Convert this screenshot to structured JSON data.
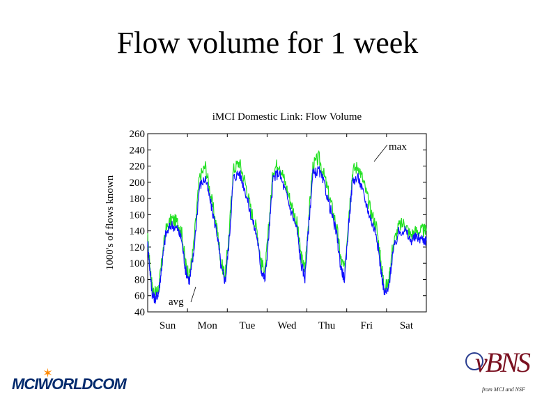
{
  "slide": {
    "title": "Flow volume for 1 week"
  },
  "chart_data": {
    "type": "line",
    "title": "iMCI Domestic Link: Flow Volume",
    "xlabel": "",
    "ylabel": "1000's of flows known",
    "ylim": [
      40,
      260
    ],
    "yticks": [
      40,
      60,
      80,
      100,
      120,
      140,
      160,
      180,
      200,
      220,
      240,
      260
    ],
    "xlim": [
      0,
      7
    ],
    "categories": [
      "Sun",
      "Mon",
      "Tue",
      "Wed",
      "Thu",
      "Fri",
      "Sat"
    ],
    "grid": false,
    "annotations": [
      {
        "text": "max",
        "series": "max"
      },
      {
        "text": "avg",
        "series": "avg"
      }
    ],
    "series": [
      {
        "name": "max",
        "color": "#22e022",
        "x": [
          0.0,
          0.05,
          0.12,
          0.2,
          0.28,
          0.35,
          0.45,
          0.6,
          0.75,
          0.85,
          0.95,
          1.05,
          1.15,
          1.3,
          1.45,
          1.6,
          1.75,
          1.85,
          1.95,
          2.05,
          2.15,
          2.3,
          2.45,
          2.6,
          2.75,
          2.85,
          2.95,
          3.05,
          3.15,
          3.3,
          3.45,
          3.6,
          3.75,
          3.85,
          3.95,
          4.05,
          4.15,
          4.3,
          4.45,
          4.6,
          4.75,
          4.85,
          4.95,
          5.05,
          5.15,
          5.3,
          5.45,
          5.6,
          5.75,
          5.85,
          5.95,
          6.05,
          6.15,
          6.3,
          6.45,
          6.6,
          6.75,
          6.9,
          7.0
        ],
        "values": [
          130,
          100,
          68,
          62,
          70,
          100,
          140,
          155,
          150,
          140,
          100,
          85,
          120,
          205,
          220,
          180,
          140,
          100,
          85,
          140,
          215,
          225,
          200,
          165,
          140,
          100,
          90,
          150,
          215,
          225,
          200,
          175,
          150,
          110,
          92,
          160,
          220,
          230,
          205,
          175,
          145,
          105,
          92,
          160,
          215,
          220,
          195,
          165,
          145,
          105,
          70,
          75,
          120,
          145,
          150,
          135,
          140,
          140,
          140
        ]
      },
      {
        "name": "avg",
        "color": "#1010ff",
        "x": [
          0.0,
          0.05,
          0.12,
          0.2,
          0.28,
          0.35,
          0.45,
          0.6,
          0.75,
          0.85,
          0.95,
          1.05,
          1.15,
          1.3,
          1.45,
          1.6,
          1.75,
          1.85,
          1.95,
          2.05,
          2.15,
          2.3,
          2.45,
          2.6,
          2.75,
          2.85,
          2.95,
          3.05,
          3.15,
          3.3,
          3.45,
          3.6,
          3.75,
          3.85,
          3.95,
          4.05,
          4.15,
          4.3,
          4.45,
          4.6,
          4.75,
          4.85,
          4.95,
          5.05,
          5.15,
          5.3,
          5.45,
          5.6,
          5.75,
          5.85,
          5.95,
          6.05,
          6.15,
          6.3,
          6.45,
          6.6,
          6.75,
          6.9,
          7.0
        ],
        "values": [
          125,
          95,
          60,
          56,
          65,
          95,
          135,
          148,
          142,
          130,
          92,
          78,
          110,
          195,
          205,
          170,
          135,
          92,
          78,
          130,
          205,
          212,
          190,
          158,
          132,
          92,
          80,
          140,
          205,
          212,
          190,
          165,
          142,
          100,
          82,
          150,
          210,
          215,
          195,
          165,
          135,
          95,
          80,
          150,
          203,
          205,
          180,
          155,
          135,
          95,
          62,
          68,
          110,
          138,
          142,
          128,
          132,
          130,
          128
        ]
      }
    ]
  },
  "logos": {
    "left": {
      "name": "MCI WORLDCOM",
      "text": "MCIWORLDCOM",
      "color": "#002a6c"
    },
    "right": {
      "name": "vBNS",
      "text": "vBNS",
      "subtitle": "from MCI and NSF",
      "color": "#7a1020"
    }
  }
}
